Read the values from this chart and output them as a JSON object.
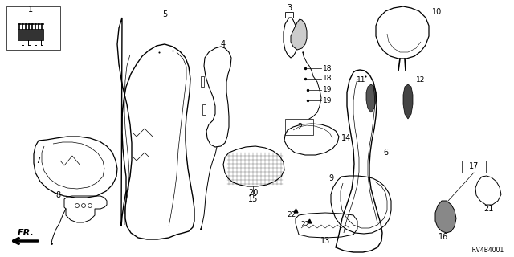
{
  "diagram_id": "TRV4B4001",
  "background_color": "#ffffff",
  "fig_width": 6.4,
  "fig_height": 3.2,
  "dpi": 100
}
